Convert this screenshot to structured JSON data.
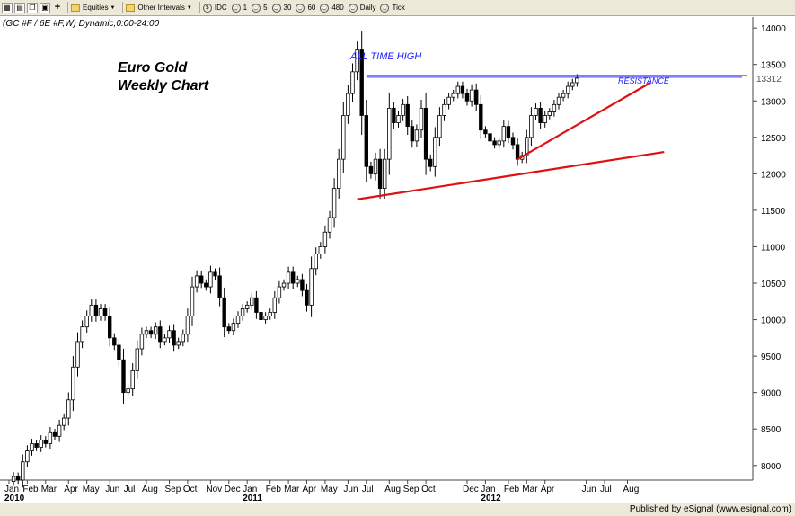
{
  "toolbar": {
    "symbol_menu": "Equities",
    "interval_menu": "Other Intervals",
    "intervals": [
      "IDC",
      "1",
      "5",
      "30",
      "60",
      "480",
      "Daily",
      "Tick"
    ]
  },
  "chart_data": {
    "type": "candlestick",
    "header": "(GC #F / 6E #F,W) Dynamic,0:00-24:00",
    "title_lines": [
      "Euro Gold",
      "Weekly Chart"
    ],
    "annotations": {
      "ath": "ALL TIME HIGH",
      "resistance": "RESISTANCE"
    },
    "resistance_level": 13350,
    "last_price": 13312,
    "last_price_label": "13312",
    "y_range": [
      7800,
      14150
    ],
    "y_ticks": [
      8000,
      8500,
      9000,
      9500,
      10000,
      10500,
      11000,
      11500,
      12000,
      12500,
      13000,
      13500,
      14000
    ],
    "x_labels": [
      {
        "label": "Jan",
        "w": 0
      },
      {
        "label": "Feb",
        "w": 4
      },
      {
        "label": "Mar",
        "w": 8
      },
      {
        "label": "Apr",
        "w": 13
      },
      {
        "label": "May",
        "w": 17
      },
      {
        "label": "Jun",
        "w": 22
      },
      {
        "label": "Jul",
        "w": 26
      },
      {
        "label": "Aug",
        "w": 30
      },
      {
        "label": "Sep",
        "w": 35
      },
      {
        "label": "Oct",
        "w": 39
      },
      {
        "label": "Nov",
        "w": 44
      },
      {
        "label": "Dec",
        "w": 48
      },
      {
        "label": "Jan",
        "w": 52
      },
      {
        "label": "Feb",
        "w": 57
      },
      {
        "label": "Mar",
        "w": 61
      },
      {
        "label": "Apr",
        "w": 65
      },
      {
        "label": "May",
        "w": 69
      },
      {
        "label": "Jun",
        "w": 74
      },
      {
        "label": "Jul",
        "w": 78
      },
      {
        "label": "Aug",
        "w": 83
      },
      {
        "label": "Sep",
        "w": 87
      },
      {
        "label": "Oct",
        "w": 91
      },
      {
        "label": "Dec",
        "w": 100
      },
      {
        "label": "Jan",
        "w": 104
      },
      {
        "label": "Feb",
        "w": 109
      },
      {
        "label": "Mar",
        "w": 113
      },
      {
        "label": "Apr",
        "w": 117
      },
      {
        "label": "Jun",
        "w": 126
      },
      {
        "label": "Jul",
        "w": 130
      },
      {
        "label": "Aug",
        "w": 135
      }
    ],
    "year_labels": [
      {
        "label": "2010",
        "w": 0
      },
      {
        "label": "2011",
        "w": 52
      },
      {
        "label": "2012",
        "w": 104
      }
    ],
    "closes": [
      7780,
      7850,
      7800,
      8050,
      8200,
      8300,
      8250,
      8350,
      8300,
      8450,
      8400,
      8550,
      8650,
      8900,
      9350,
      9700,
      9900,
      10050,
      10200,
      10050,
      10150,
      10050,
      9750,
      9650,
      9450,
      9000,
      9050,
      9300,
      9600,
      9800,
      9850,
      9800,
      9900,
      9700,
      9750,
      9850,
      9650,
      9700,
      9800,
      10050,
      10450,
      10600,
      10500,
      10450,
      10650,
      10600,
      10300,
      9900,
      9850,
      9950,
      10050,
      10150,
      10200,
      10300,
      10100,
      10000,
      10050,
      10100,
      10300,
      10450,
      10500,
      10650,
      10500,
      10550,
      10400,
      10200,
      10700,
      10900,
      11000,
      11200,
      11400,
      11800,
      12200,
      12800,
      13100,
      13400,
      13700,
      12800,
      12100,
      12000,
      12200,
      11800,
      12200,
      12900,
      12700,
      12800,
      12950,
      12650,
      12450,
      12600,
      12900,
      12200,
      12100,
      12500,
      12800,
      12950,
      13050,
      13100,
      13200,
      13100,
      13000,
      13150,
      12950,
      12600,
      12550,
      12450,
      12400,
      12450,
      12650,
      12500,
      12400,
      12200,
      12250,
      12500,
      12800,
      12900,
      12700,
      12800,
      12850,
      12950,
      13050,
      13100,
      13200,
      13250,
      13312
    ],
    "trendlines": [
      {
        "name": "lower-support",
        "start": [
          76,
          11650
        ],
        "end": [
          143,
          12300
        ]
      },
      {
        "name": "rising-support",
        "start": [
          111,
          12200
        ],
        "end": [
          140,
          13250
        ]
      }
    ]
  },
  "footer": {
    "text": "Published by eSignal (www.esignal.com)"
  }
}
